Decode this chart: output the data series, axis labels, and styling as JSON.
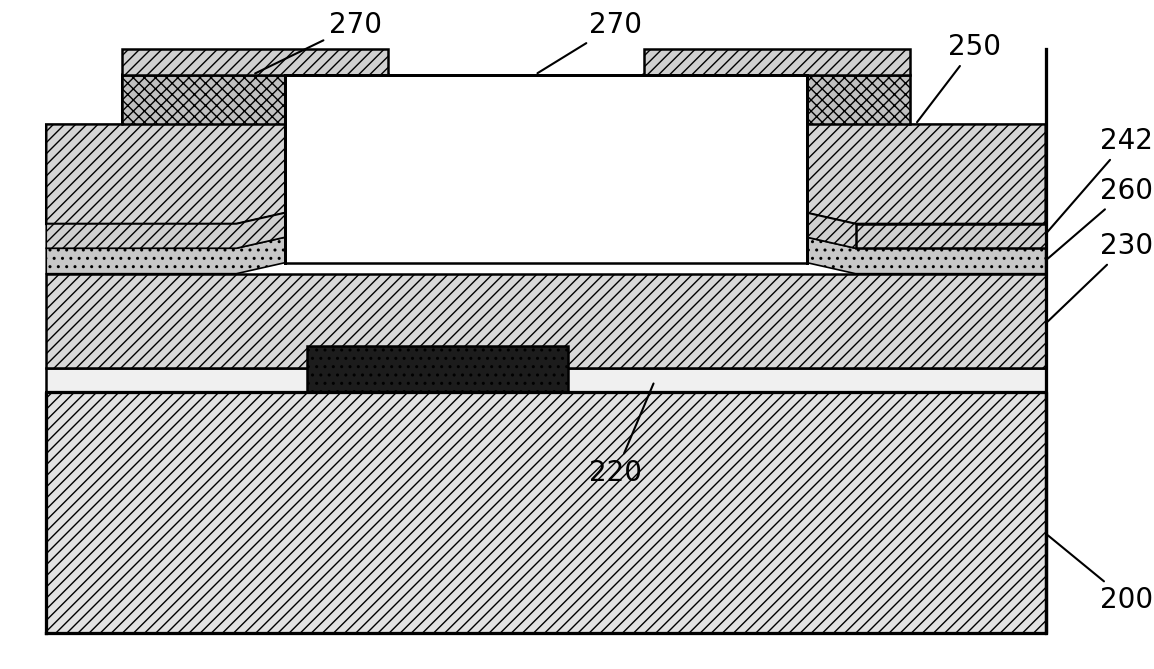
{
  "fig_width": 11.54,
  "fig_height": 6.69,
  "bg_color": "#ffffff",
  "annotation_fontsize": 20,
  "lw": 1.8
}
